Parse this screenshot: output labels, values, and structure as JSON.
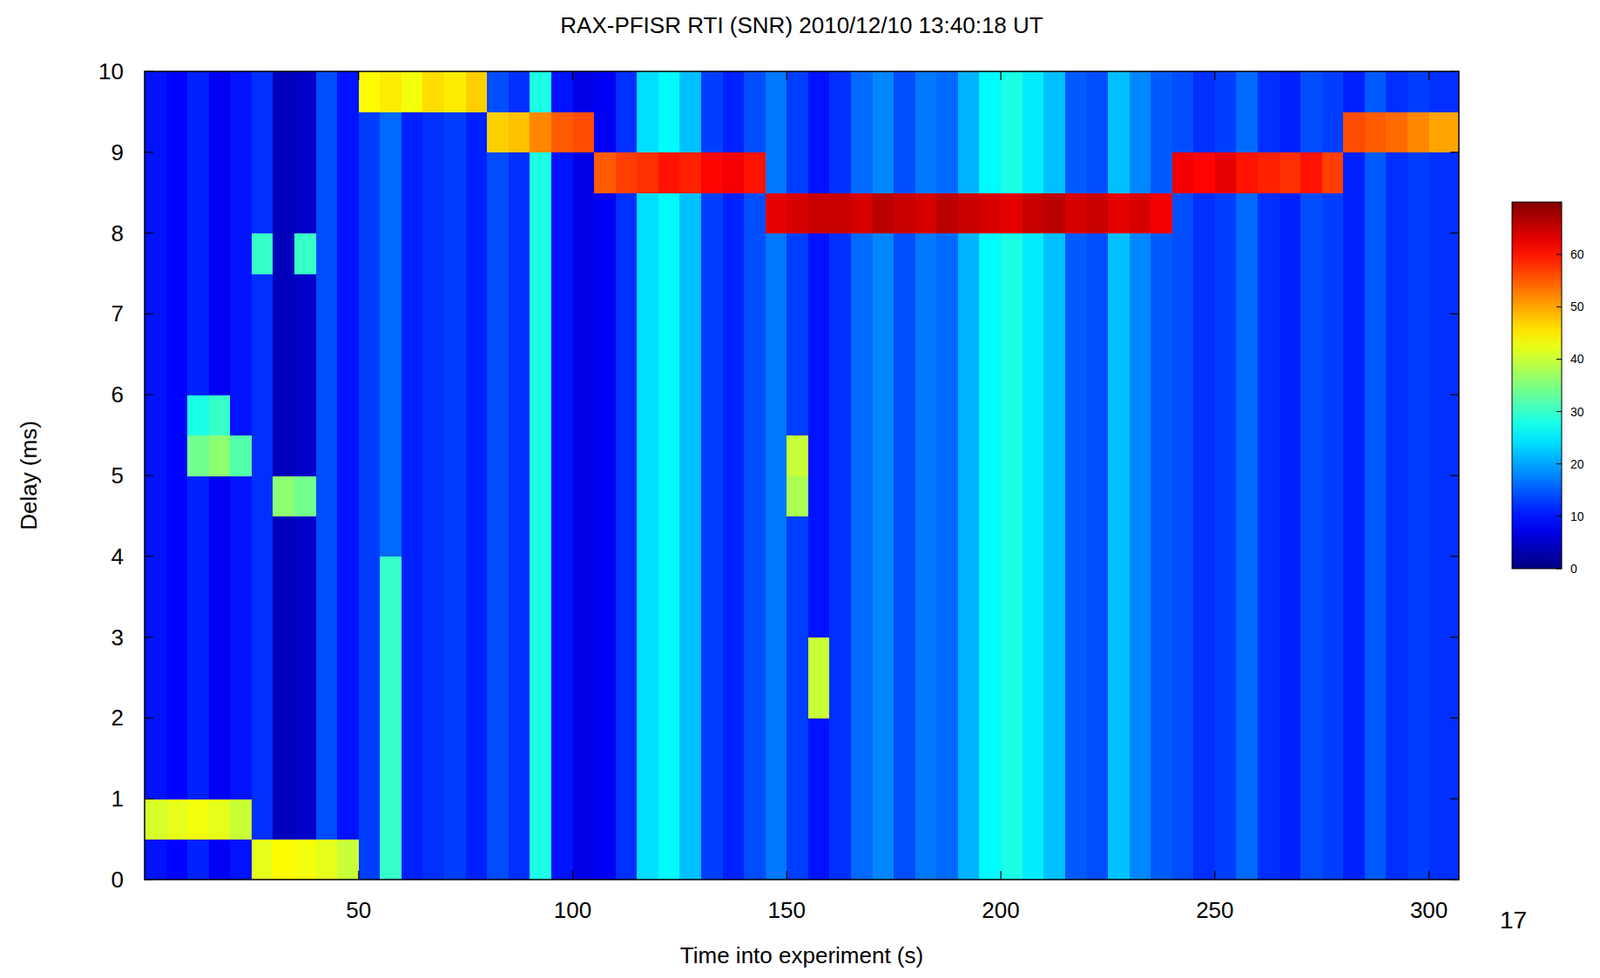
{
  "chart_data": {
    "type": "heatmap",
    "title": "RAX-PFISR RTI (SNR) 2010/12/10 13:40:18 UT",
    "x_label": "Time into experiment (s)",
    "y_label": "Delay (ms)",
    "xlim": [
      0,
      307
    ],
    "ylim": [
      0,
      10
    ],
    "xticks": [
      50,
      100,
      150,
      200,
      250,
      300
    ],
    "yticks": [
      0,
      1,
      2,
      3,
      4,
      5,
      6,
      7,
      8,
      9,
      10
    ],
    "x_edges": [
      0,
      5,
      10,
      15,
      20,
      25,
      30,
      35,
      40,
      45,
      50,
      55,
      60,
      65,
      70,
      75,
      80,
      85,
      90,
      95,
      100,
      105,
      110,
      115,
      120,
      125,
      130,
      135,
      140,
      145,
      150,
      155,
      160,
      165,
      170,
      175,
      180,
      185,
      190,
      195,
      200,
      205,
      210,
      215,
      220,
      225,
      230,
      235,
      240,
      245,
      250,
      255,
      260,
      265,
      270,
      275,
      280,
      285,
      290,
      295,
      300,
      307
    ],
    "y_edges": [
      0,
      0.5,
      1,
      1.5,
      2,
      2.5,
      3,
      3.5,
      4,
      4.5,
      5,
      5.5,
      6,
      6.5,
      7,
      7.5,
      8,
      8.5,
      9,
      9.5,
      10
    ],
    "cells": [
      [
        10,
        9,
        11,
        8,
        10,
        42,
        44,
        43,
        42,
        40,
        13,
        30,
        11,
        12,
        13,
        11,
        14,
        12,
        28,
        10,
        7,
        8,
        12,
        24,
        26,
        22,
        13,
        11,
        14,
        17,
        13,
        10,
        12,
        16,
        18,
        14,
        17,
        16,
        21,
        26,
        28,
        25,
        22,
        15,
        14,
        22,
        18,
        15,
        14,
        12,
        13,
        16,
        12,
        11,
        14,
        13,
        11,
        15,
        12,
        13,
        12
      ],
      [
        41,
        42,
        43,
        42,
        40,
        12,
        4,
        5,
        14,
        10,
        13,
        30,
        11,
        12,
        13,
        11,
        14,
        12,
        28,
        10,
        7,
        8,
        12,
        24,
        26,
        22,
        13,
        11,
        14,
        17,
        13,
        10,
        12,
        16,
        18,
        14,
        17,
        16,
        21,
        26,
        28,
        25,
        22,
        15,
        14,
        22,
        18,
        15,
        14,
        12,
        13,
        16,
        12,
        11,
        14,
        13,
        11,
        15,
        12,
        13,
        12
      ],
      [
        10,
        9,
        11,
        8,
        10,
        12,
        4,
        5,
        14,
        10,
        13,
        30,
        11,
        12,
        13,
        11,
        14,
        12,
        28,
        10,
        7,
        8,
        12,
        24,
        26,
        22,
        13,
        11,
        14,
        17,
        13,
        10,
        12,
        16,
        18,
        14,
        17,
        16,
        21,
        26,
        28,
        25,
        22,
        15,
        14,
        22,
        18,
        15,
        14,
        12,
        13,
        16,
        12,
        11,
        14,
        13,
        11,
        15,
        12,
        13,
        12
      ],
      [
        10,
        9,
        11,
        8,
        10,
        12,
        4,
        5,
        14,
        10,
        13,
        30,
        11,
        12,
        13,
        11,
        14,
        12,
        28,
        10,
        7,
        8,
        12,
        24,
        26,
        22,
        13,
        11,
        14,
        17,
        13,
        10,
        12,
        16,
        18,
        14,
        17,
        16,
        21,
        26,
        28,
        25,
        22,
        15,
        14,
        22,
        18,
        15,
        14,
        12,
        13,
        16,
        12,
        11,
        14,
        13,
        11,
        15,
        12,
        13,
        12
      ],
      [
        10,
        9,
        11,
        8,
        10,
        12,
        4,
        5,
        14,
        10,
        13,
        30,
        11,
        12,
        13,
        11,
        14,
        12,
        28,
        10,
        7,
        8,
        12,
        24,
        26,
        22,
        13,
        11,
        14,
        17,
        13,
        40,
        12,
        16,
        18,
        14,
        17,
        16,
        21,
        26,
        28,
        25,
        22,
        15,
        14,
        22,
        18,
        15,
        14,
        12,
        13,
        16,
        12,
        11,
        14,
        13,
        11,
        15,
        12,
        13,
        12
      ],
      [
        10,
        9,
        11,
        8,
        10,
        12,
        4,
        5,
        14,
        10,
        13,
        30,
        11,
        12,
        13,
        11,
        14,
        12,
        28,
        10,
        7,
        8,
        12,
        24,
        26,
        22,
        13,
        11,
        14,
        17,
        13,
        40,
        12,
        16,
        18,
        14,
        17,
        16,
        21,
        26,
        28,
        25,
        22,
        15,
        14,
        22,
        18,
        15,
        14,
        12,
        13,
        16,
        12,
        11,
        14,
        13,
        11,
        15,
        12,
        13,
        12
      ],
      [
        10,
        9,
        11,
        8,
        10,
        12,
        4,
        5,
        14,
        10,
        13,
        30,
        11,
        12,
        13,
        11,
        14,
        12,
        28,
        10,
        7,
        8,
        12,
        24,
        26,
        22,
        13,
        11,
        14,
        17,
        13,
        10,
        12,
        16,
        18,
        14,
        17,
        16,
        21,
        26,
        28,
        25,
        22,
        15,
        14,
        22,
        18,
        15,
        14,
        12,
        13,
        16,
        12,
        11,
        14,
        13,
        11,
        15,
        12,
        13,
        12
      ],
      [
        10,
        9,
        11,
        8,
        10,
        12,
        4,
        5,
        14,
        10,
        13,
        30,
        11,
        12,
        13,
        11,
        14,
        12,
        28,
        10,
        7,
        8,
        12,
        24,
        26,
        22,
        13,
        11,
        14,
        17,
        13,
        10,
        12,
        16,
        18,
        14,
        17,
        16,
        21,
        26,
        28,
        25,
        22,
        15,
        14,
        22,
        18,
        15,
        14,
        12,
        13,
        16,
        12,
        11,
        14,
        13,
        11,
        15,
        12,
        13,
        12
      ],
      [
        10,
        9,
        11,
        8,
        10,
        12,
        4,
        5,
        14,
        10,
        13,
        16,
        11,
        12,
        13,
        11,
        14,
        12,
        28,
        10,
        7,
        8,
        12,
        24,
        26,
        22,
        13,
        11,
        14,
        17,
        13,
        10,
        12,
        16,
        18,
        14,
        17,
        16,
        21,
        26,
        28,
        25,
        22,
        15,
        14,
        22,
        18,
        15,
        14,
        12,
        13,
        16,
        12,
        11,
        14,
        13,
        11,
        15,
        12,
        13,
        12
      ],
      [
        10,
        9,
        11,
        8,
        10,
        12,
        36,
        34,
        14,
        10,
        13,
        16,
        11,
        12,
        13,
        11,
        14,
        12,
        28,
        10,
        7,
        8,
        12,
        24,
        26,
        22,
        13,
        11,
        14,
        17,
        38,
        10,
        12,
        16,
        18,
        14,
        17,
        16,
        21,
        26,
        28,
        25,
        22,
        15,
        14,
        22,
        18,
        15,
        14,
        12,
        13,
        16,
        12,
        11,
        14,
        13,
        11,
        15,
        12,
        13,
        12
      ],
      [
        10,
        9,
        34,
        36,
        32,
        12,
        4,
        5,
        14,
        10,
        13,
        16,
        11,
        12,
        13,
        11,
        14,
        12,
        28,
        10,
        7,
        8,
        12,
        24,
        26,
        22,
        13,
        11,
        14,
        17,
        40,
        10,
        12,
        16,
        18,
        14,
        17,
        16,
        21,
        26,
        28,
        25,
        22,
        15,
        14,
        22,
        18,
        15,
        14,
        12,
        13,
        16,
        12,
        11,
        14,
        13,
        11,
        15,
        12,
        13,
        12
      ],
      [
        10,
        9,
        28,
        30,
        10,
        12,
        4,
        5,
        14,
        10,
        13,
        16,
        11,
        12,
        13,
        11,
        14,
        12,
        28,
        10,
        7,
        8,
        12,
        24,
        26,
        22,
        13,
        11,
        14,
        17,
        13,
        10,
        12,
        16,
        18,
        14,
        17,
        16,
        21,
        26,
        28,
        25,
        22,
        15,
        14,
        22,
        18,
        15,
        14,
        12,
        13,
        16,
        12,
        11,
        14,
        13,
        11,
        15,
        12,
        13,
        12
      ],
      [
        10,
        9,
        11,
        8,
        10,
        12,
        4,
        5,
        14,
        10,
        13,
        16,
        11,
        12,
        13,
        11,
        14,
        12,
        28,
        10,
        7,
        8,
        12,
        24,
        26,
        22,
        13,
        11,
        14,
        17,
        13,
        10,
        12,
        16,
        18,
        14,
        17,
        16,
        21,
        26,
        28,
        25,
        22,
        15,
        14,
        22,
        18,
        15,
        14,
        12,
        13,
        16,
        12,
        11,
        14,
        13,
        11,
        15,
        12,
        13,
        12
      ],
      [
        10,
        9,
        11,
        8,
        10,
        12,
        4,
        5,
        14,
        10,
        13,
        16,
        11,
        12,
        13,
        11,
        14,
        12,
        28,
        10,
        7,
        8,
        12,
        24,
        26,
        22,
        13,
        11,
        14,
        17,
        13,
        10,
        12,
        16,
        18,
        14,
        17,
        16,
        21,
        26,
        28,
        25,
        22,
        15,
        14,
        22,
        18,
        15,
        14,
        12,
        13,
        16,
        12,
        11,
        14,
        13,
        11,
        15,
        12,
        13,
        12
      ],
      [
        10,
        9,
        11,
        8,
        10,
        12,
        4,
        5,
        14,
        10,
        13,
        16,
        11,
        12,
        13,
        11,
        14,
        12,
        28,
        10,
        7,
        8,
        12,
        24,
        26,
        22,
        13,
        11,
        14,
        17,
        13,
        10,
        12,
        16,
        18,
        14,
        17,
        16,
        21,
        26,
        28,
        25,
        22,
        15,
        14,
        22,
        18,
        15,
        14,
        12,
        13,
        16,
        12,
        11,
        14,
        13,
        11,
        15,
        12,
        13,
        12
      ],
      [
        10,
        9,
        11,
        8,
        10,
        30,
        4,
        30,
        14,
        10,
        13,
        16,
        11,
        12,
        13,
        11,
        14,
        12,
        28,
        10,
        7,
        8,
        12,
        24,
        26,
        22,
        13,
        11,
        14,
        17,
        13,
        10,
        12,
        16,
        18,
        14,
        17,
        16,
        21,
        26,
        28,
        25,
        22,
        15,
        14,
        22,
        18,
        15,
        14,
        12,
        13,
        16,
        12,
        11,
        14,
        13,
        11,
        15,
        12,
        13,
        12
      ],
      [
        10,
        9,
        11,
        8,
        10,
        12,
        4,
        5,
        14,
        10,
        13,
        16,
        11,
        12,
        13,
        11,
        14,
        12,
        28,
        10,
        7,
        8,
        12,
        24,
        26,
        22,
        13,
        11,
        14,
        63,
        64,
        65,
        65,
        64,
        66,
        65,
        64,
        66,
        65,
        64,
        63,
        65,
        66,
        64,
        65,
        63,
        64,
        62,
        14,
        12,
        13,
        16,
        12,
        11,
        14,
        13,
        11,
        15,
        12,
        13,
        12
      ],
      [
        10,
        9,
        11,
        8,
        10,
        12,
        4,
        5,
        14,
        10,
        13,
        16,
        11,
        12,
        13,
        11,
        14,
        12,
        28,
        10,
        7,
        55,
        57,
        58,
        60,
        59,
        61,
        62,
        60,
        17,
        13,
        10,
        12,
        16,
        18,
        14,
        17,
        16,
        21,
        26,
        28,
        25,
        22,
        15,
        14,
        22,
        18,
        15,
        62,
        61,
        63,
        60,
        59,
        58,
        60,
        57,
        11,
        15,
        12,
        13,
        12
      ],
      [
        10,
        9,
        11,
        8,
        10,
        12,
        4,
        5,
        14,
        10,
        13,
        16,
        11,
        12,
        13,
        11,
        47,
        48,
        52,
        55,
        56,
        8,
        12,
        24,
        26,
        22,
        13,
        11,
        14,
        17,
        13,
        10,
        12,
        16,
        18,
        14,
        17,
        16,
        21,
        26,
        28,
        25,
        22,
        15,
        14,
        22,
        18,
        15,
        14,
        12,
        13,
        16,
        12,
        11,
        14,
        13,
        56,
        55,
        54,
        52,
        50
      ],
      [
        10,
        9,
        11,
        8,
        10,
        12,
        4,
        5,
        14,
        10,
        44,
        45,
        43,
        46,
        45,
        47,
        14,
        12,
        28,
        10,
        7,
        8,
        12,
        24,
        26,
        22,
        13,
        11,
        14,
        17,
        13,
        10,
        12,
        16,
        18,
        14,
        17,
        16,
        21,
        26,
        28,
        25,
        22,
        15,
        14,
        22,
        18,
        15,
        14,
        12,
        13,
        16,
        12,
        11,
        14,
        13,
        11,
        15,
        12,
        13,
        12
      ]
    ],
    "color_range": [
      0,
      70
    ],
    "color_ticks": [
      0,
      10,
      20,
      30,
      40,
      50,
      60
    ]
  },
  "page_number": "17"
}
